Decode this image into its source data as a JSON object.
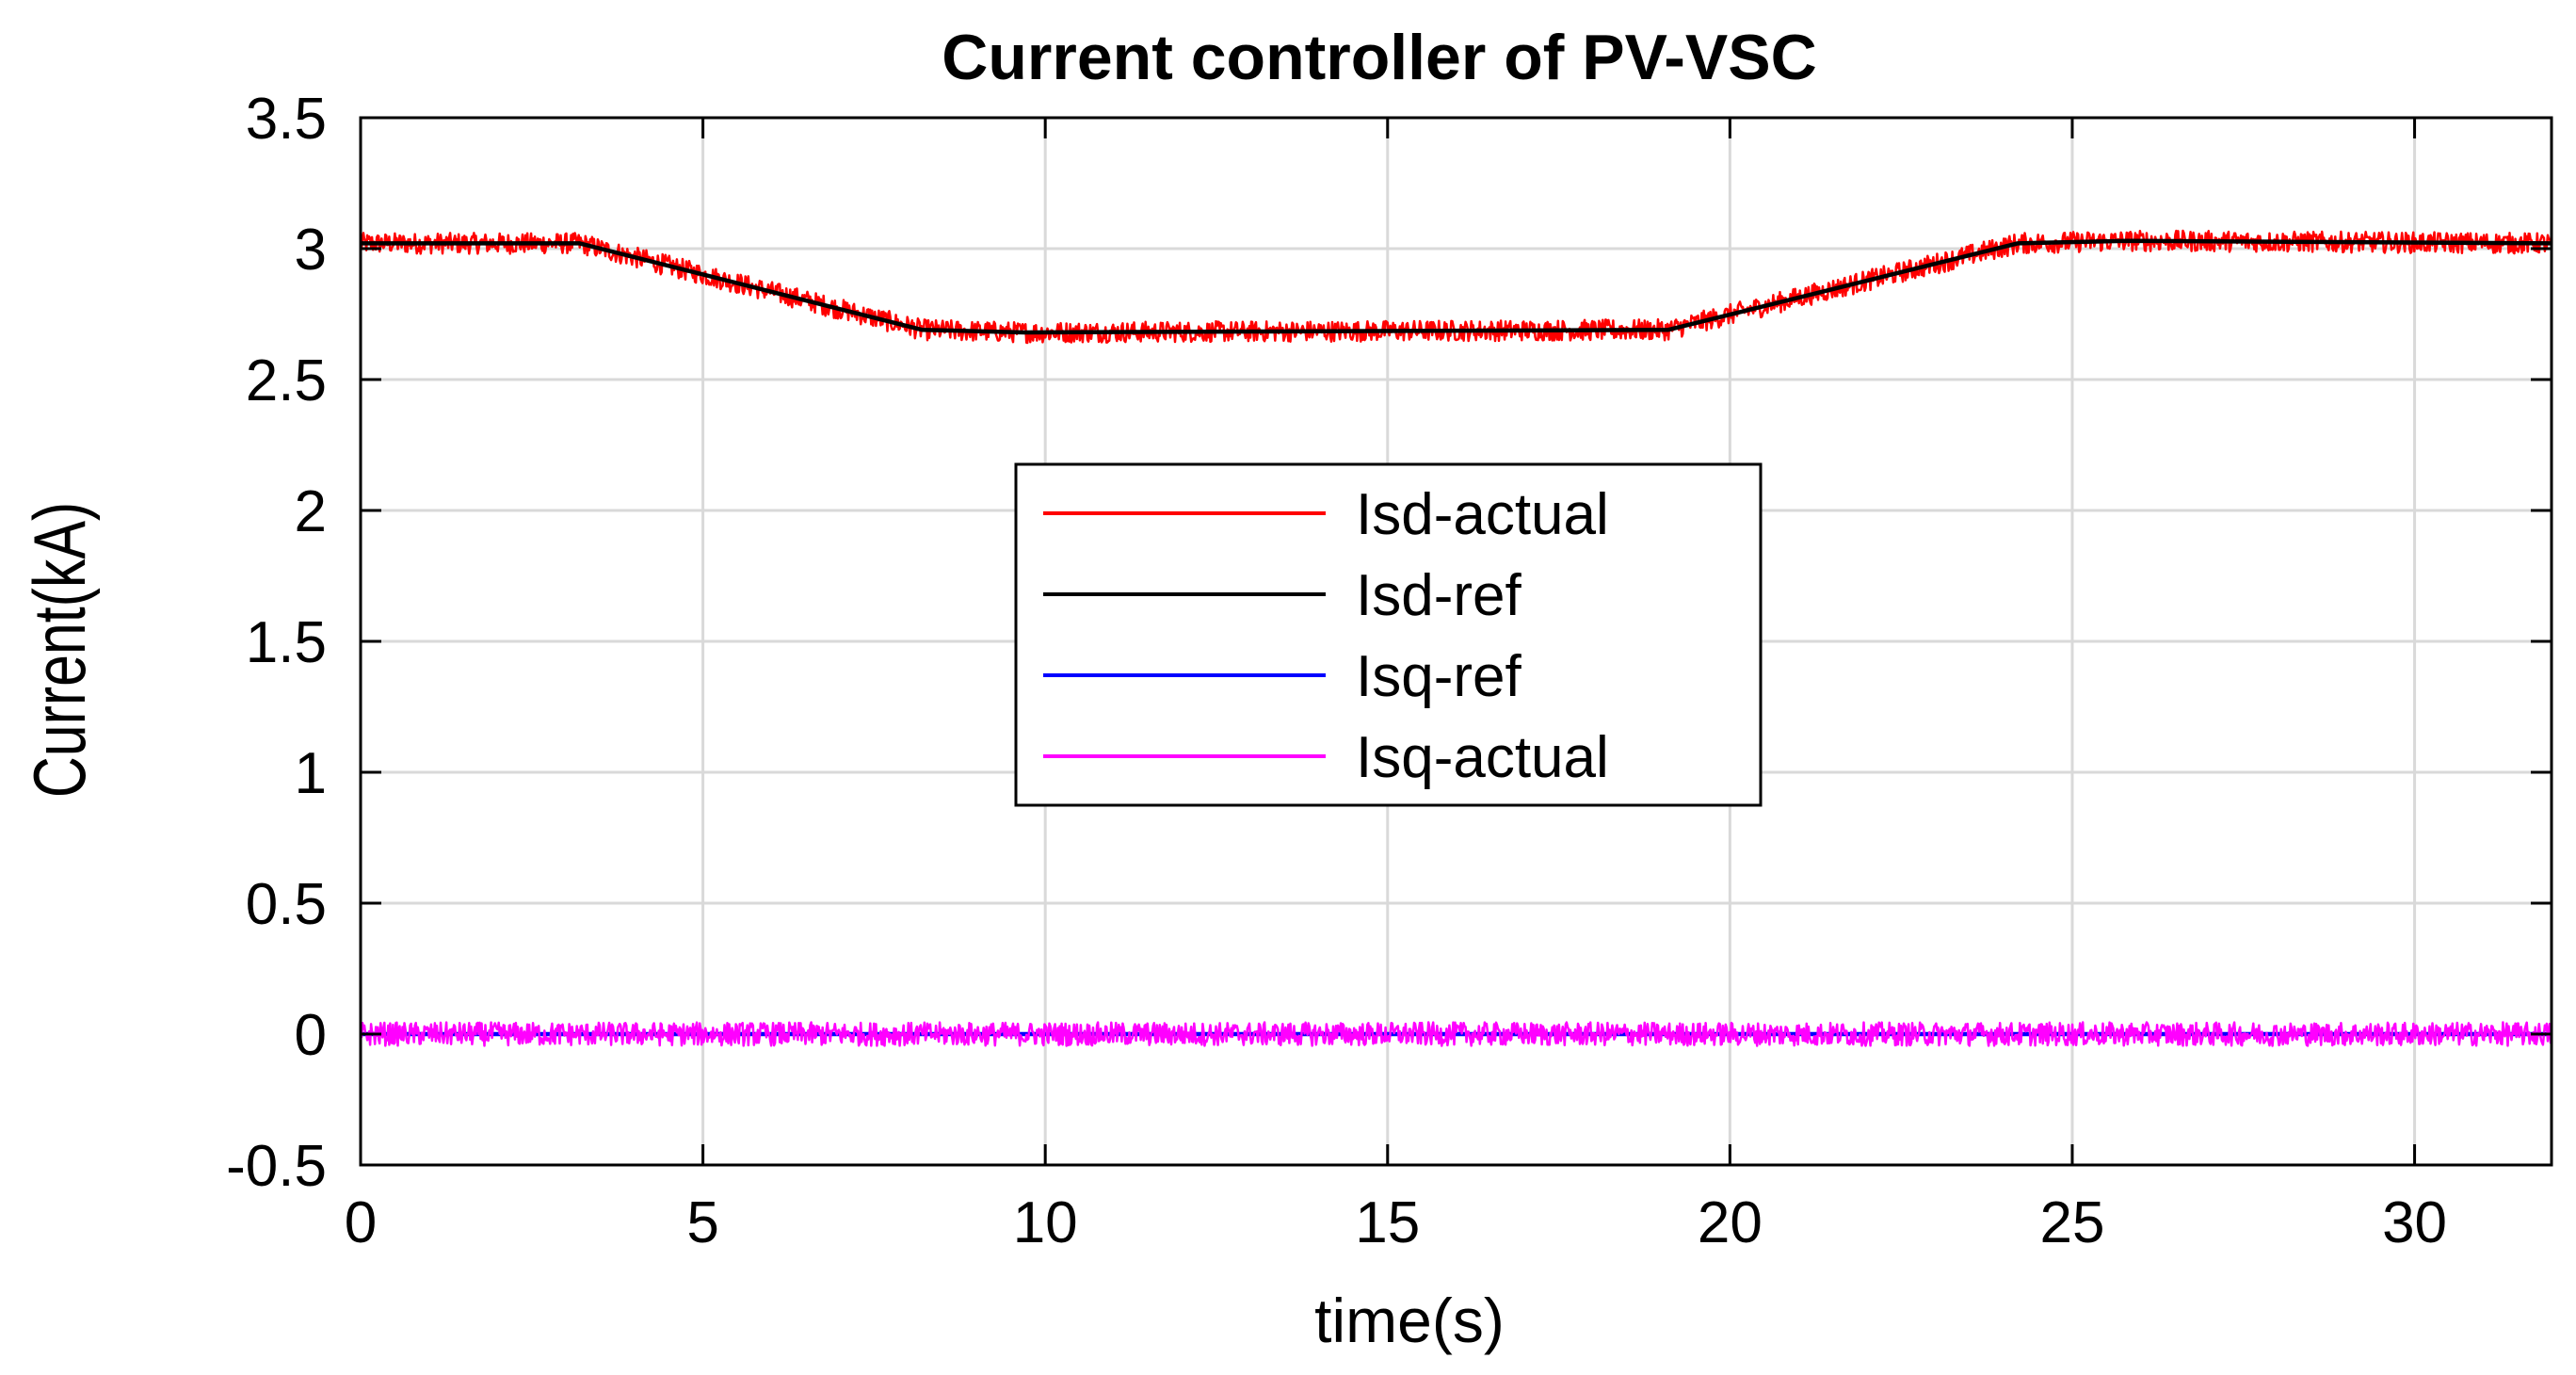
{
  "chart_data": {
    "type": "line",
    "title": "Current controller of PV-VSC",
    "xlabel": "time(s)",
    "ylabel": "Current(kA)",
    "xlim": [
      0,
      32
    ],
    "ylim": [
      -0.5,
      3.5
    ],
    "xticks": [
      "0",
      "5",
      "10",
      "15",
      "20",
      "25",
      "30"
    ],
    "yticks": [
      "-0.5",
      "0",
      "0.5",
      "1",
      "1.5",
      "2",
      "2.5",
      "3",
      "3.5"
    ],
    "grid": true,
    "legend_position": "center",
    "series": [
      {
        "name": "Isd-actual",
        "color": "#ff0000",
        "noise": 0.04,
        "x": [
          0,
          3.2,
          8.2,
          9.7,
          19.1,
          24.2,
          25.8,
          32
        ],
        "y": [
          3.02,
          3.02,
          2.69,
          2.68,
          2.69,
          3.02,
          3.03,
          3.02
        ]
      },
      {
        "name": "Isd-ref",
        "color": "#000000",
        "noise": 0,
        "x": [
          0,
          3.2,
          8.2,
          9.7,
          19.1,
          24.2,
          25.8,
          32
        ],
        "y": [
          3.02,
          3.02,
          2.69,
          2.68,
          2.69,
          3.02,
          3.03,
          3.02
        ]
      },
      {
        "name": "Isq-ref",
        "color": "#0000ff",
        "noise": 0,
        "x": [
          0,
          32
        ],
        "y": [
          0,
          0
        ]
      },
      {
        "name": "Isq-actual",
        "color": "#ff00ff",
        "noise": 0.045,
        "x": [
          0,
          32
        ],
        "y": [
          0,
          0
        ]
      }
    ]
  }
}
